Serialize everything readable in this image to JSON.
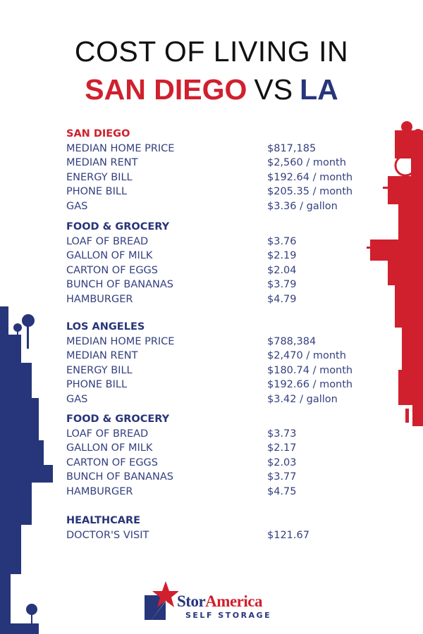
{
  "title": {
    "line1": "COST OF LIVING IN",
    "city1": "SAN DIEGO",
    "vs": "VS",
    "city2": "LA"
  },
  "colors": {
    "red": "#d0202e",
    "navy": "#27357a",
    "text": "#34407f"
  },
  "sections": [
    {
      "heading": "SAN DIEGO",
      "color": "#d0202e",
      "rows": [
        {
          "label": "MEDIAN HOME PRICE",
          "value": "$817,185"
        },
        {
          "label": "MEDIAN RENT",
          "value": "$2,560 / month"
        },
        {
          "label": "ENERGY BILL",
          "value": "$192.64 / month"
        },
        {
          "label": "PHONE BILL",
          "value": "$205.35 / month"
        },
        {
          "label": "GAS",
          "value": "$3.36 / gallon"
        }
      ]
    },
    {
      "heading": "FOOD & GROCERY",
      "color": "#27357a",
      "rows": [
        {
          "label": "LOAF OF BREAD",
          "value": "$3.76"
        },
        {
          "label": "GALLON OF MILK",
          "value": "$2.19"
        },
        {
          "label": "CARTON OF EGGS",
          "value": "$2.04"
        },
        {
          "label": "BUNCH OF BANANAS",
          "value": "$3.79"
        },
        {
          "label": "HAMBURGER",
          "value": "$4.79"
        }
      ]
    },
    {
      "heading": "LOS ANGELES",
      "color": "#27357a",
      "rows": [
        {
          "label": "MEDIAN HOME PRICE",
          "value": "$788,384"
        },
        {
          "label": "MEDIAN RENT",
          "value": "$2,470 / month"
        },
        {
          "label": "ENERGY BILL",
          "value": "$180.74 / month"
        },
        {
          "label": "PHONE BILL",
          "value": "$192.66 / month"
        },
        {
          "label": "GAS",
          "value": "$3.42 / gallon"
        }
      ]
    },
    {
      "heading": "FOOD & GROCERY",
      "color": "#27357a",
      "rows": [
        {
          "label": "LOAF OF BREAD",
          "value": "$3.73"
        },
        {
          "label": "GALLON OF MILK",
          "value": "$2.17"
        },
        {
          "label": "CARTON OF EGGS",
          "value": "$2.03"
        },
        {
          "label": "BUNCH OF BANANAS",
          "value": "$3.77"
        },
        {
          "label": "HAMBURGER",
          "value": "$4.75"
        }
      ]
    },
    {
      "heading": "HEALTHCARE",
      "color": "#27357a",
      "rows": [
        {
          "label": "DOCTOR'S VISIT",
          "value": "$121.67"
        }
      ]
    }
  ],
  "logo": {
    "brand_part1": "Stor",
    "brand_part2": "America",
    "tagline": "SELF STORAGE"
  }
}
